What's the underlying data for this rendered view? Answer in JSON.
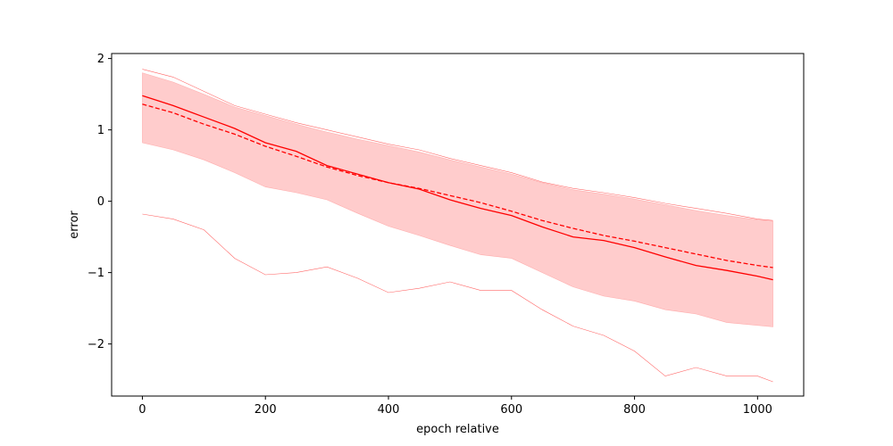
{
  "chart_data": {
    "type": "line",
    "title": "",
    "xlabel": "epoch relative",
    "ylabel": "error",
    "xlim": [
      -50,
      1075
    ],
    "ylim": [
      -2.73,
      2.07
    ],
    "xticks": [
      0,
      200,
      400,
      600,
      800,
      1000
    ],
    "yticks": [
      -2,
      -1,
      0,
      1,
      2
    ],
    "grid": false,
    "legend": "none",
    "colors": {
      "line": "#ff0000",
      "band": "#ffcccc",
      "band_edge": "#ff8080"
    },
    "x": [
      0,
      50,
      100,
      150,
      200,
      250,
      300,
      350,
      400,
      450,
      500,
      550,
      600,
      650,
      700,
      750,
      800,
      850,
      900,
      950,
      1000,
      1025
    ],
    "series": [
      {
        "name": "",
        "style": "solid",
        "role": "main",
        "values": [
          1.48,
          1.34,
          1.18,
          1.02,
          0.82,
          0.7,
          0.5,
          0.38,
          0.26,
          0.17,
          0.02,
          -0.1,
          -0.2,
          -0.36,
          -0.5,
          -0.55,
          -0.65,
          -0.78,
          -0.9,
          -0.97,
          -1.05,
          -1.1
        ]
      },
      {
        "name": "",
        "style": "dashed",
        "role": "main",
        "values": [
          1.36,
          1.24,
          1.08,
          0.94,
          0.77,
          0.63,
          0.48,
          0.36,
          0.26,
          0.18,
          0.08,
          -0.02,
          -0.14,
          -0.27,
          -0.38,
          -0.48,
          -0.56,
          -0.65,
          -0.74,
          -0.83,
          -0.9,
          -0.93
        ]
      },
      {
        "name": "",
        "style": "thin",
        "role": "max",
        "values": [
          1.85,
          1.74,
          1.54,
          1.34,
          1.22,
          1.1,
          1.0,
          0.9,
          0.8,
          0.72,
          0.6,
          0.5,
          0.4,
          0.27,
          0.18,
          0.12,
          0.05,
          -0.03,
          -0.1,
          -0.17,
          -0.25,
          -0.27
        ]
      },
      {
        "name": "",
        "style": "thin",
        "role": "min",
        "values": [
          -0.18,
          -0.25,
          -0.4,
          -0.8,
          -1.03,
          -1.0,
          -0.92,
          -1.08,
          -1.28,
          -1.22,
          -1.13,
          -1.25,
          -1.25,
          -1.52,
          -1.75,
          -1.88,
          -2.1,
          -2.45,
          -2.33,
          -2.45,
          -2.45,
          -2.53
        ]
      },
      {
        "name": "",
        "style": "band",
        "role": "upper",
        "values": [
          1.8,
          1.67,
          1.5,
          1.32,
          1.2,
          1.08,
          0.97,
          0.87,
          0.78,
          0.69,
          0.58,
          0.48,
          0.38,
          0.26,
          0.16,
          0.1,
          0.03,
          -0.05,
          -0.13,
          -0.2,
          -0.26,
          -0.28
        ]
      },
      {
        "name": "",
        "style": "band",
        "role": "lower",
        "values": [
          0.82,
          0.72,
          0.58,
          0.4,
          0.2,
          0.12,
          0.02,
          -0.17,
          -0.35,
          -0.48,
          -0.62,
          -0.75,
          -0.8,
          -1.0,
          -1.2,
          -1.33,
          -1.4,
          -1.52,
          -1.58,
          -1.7,
          -1.74,
          -1.76
        ]
      }
    ]
  }
}
